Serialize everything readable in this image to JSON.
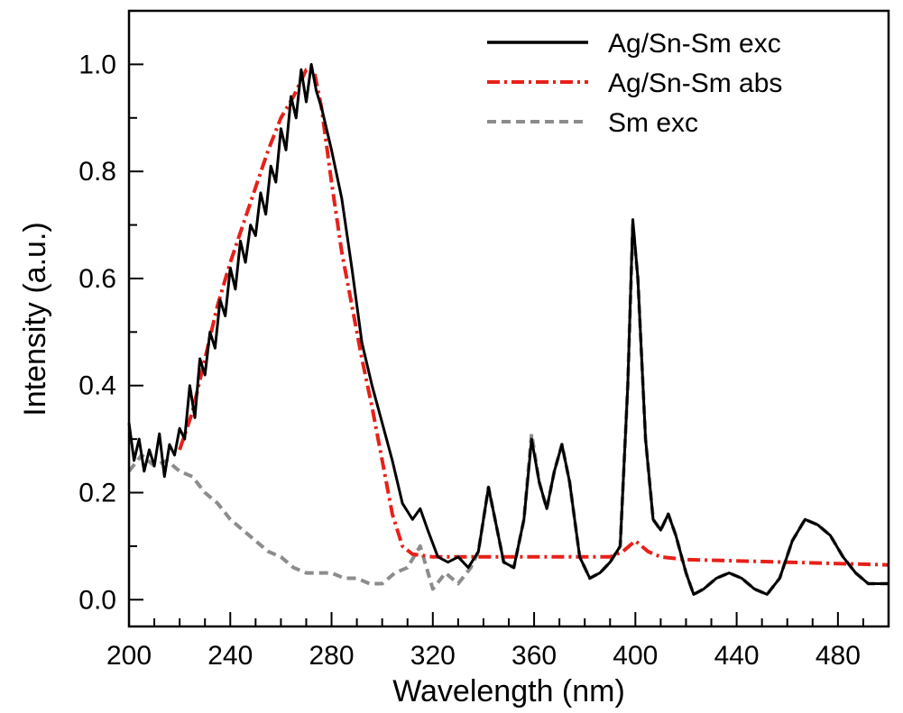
{
  "chart_data": {
    "type": "line",
    "title": "",
    "xlabel": "Wavelength (nm)",
    "ylabel": "Intensity (a.u.)",
    "xlim": [
      200,
      500
    ],
    "ylim": [
      -0.05,
      1.1
    ],
    "xticks": [
      200,
      240,
      280,
      320,
      360,
      400,
      440,
      480
    ],
    "yticks": [
      0.0,
      0.2,
      0.4,
      0.6,
      0.8,
      1.0
    ],
    "ytick_labels": [
      "0.0",
      "0.2",
      "0.4",
      "0.6",
      "0.8",
      "1.0"
    ],
    "grid": false,
    "legend_position": "top-right",
    "series": [
      {
        "name": "Ag/Sn-Sm exc",
        "color": "#000000",
        "style": "solid",
        "x": [
          200,
          202,
          204,
          206,
          208,
          210,
          212,
          214,
          216,
          218,
          220,
          222,
          224,
          226,
          228,
          230,
          232,
          234,
          236,
          238,
          240,
          242,
          244,
          246,
          248,
          250,
          252,
          254,
          256,
          258,
          260,
          262,
          264,
          266,
          268,
          270,
          272,
          274,
          276,
          280,
          284,
          288,
          292,
          296,
          300,
          304,
          308,
          312,
          315,
          318,
          322,
          326,
          330,
          334,
          338,
          342,
          345,
          348,
          352,
          356,
          359,
          362,
          365,
          368,
          371,
          374,
          378,
          382,
          386,
          390,
          394,
          397,
          399,
          401,
          404,
          407,
          410,
          413,
          416,
          420,
          423,
          427,
          432,
          437,
          442,
          447,
          452,
          457,
          462,
          467,
          472,
          477,
          482,
          487,
          492,
          497,
          500
        ],
        "y": [
          0.33,
          0.26,
          0.3,
          0.24,
          0.28,
          0.25,
          0.31,
          0.23,
          0.29,
          0.27,
          0.32,
          0.3,
          0.4,
          0.34,
          0.45,
          0.42,
          0.5,
          0.47,
          0.56,
          0.53,
          0.62,
          0.58,
          0.67,
          0.63,
          0.7,
          0.68,
          0.76,
          0.72,
          0.81,
          0.78,
          0.88,
          0.84,
          0.94,
          0.9,
          0.99,
          0.93,
          1.0,
          0.95,
          0.92,
          0.84,
          0.75,
          0.62,
          0.48,
          0.4,
          0.33,
          0.26,
          0.18,
          0.15,
          0.17,
          0.13,
          0.08,
          0.07,
          0.08,
          0.06,
          0.09,
          0.21,
          0.14,
          0.07,
          0.06,
          0.15,
          0.3,
          0.22,
          0.17,
          0.24,
          0.29,
          0.22,
          0.08,
          0.04,
          0.05,
          0.07,
          0.1,
          0.4,
          0.71,
          0.6,
          0.3,
          0.15,
          0.13,
          0.16,
          0.12,
          0.05,
          0.01,
          0.02,
          0.04,
          0.05,
          0.04,
          0.02,
          0.01,
          0.04,
          0.11,
          0.15,
          0.14,
          0.12,
          0.08,
          0.05,
          0.03,
          0.03,
          0.03
        ]
      },
      {
        "name": "Ag/Sn-Sm abs",
        "color": "#e8201a",
        "style": "dashdot",
        "x": [
          220,
          225,
          230,
          235,
          240,
          245,
          250,
          255,
          260,
          265,
          270,
          273,
          276,
          280,
          284,
          288,
          292,
          296,
          300,
          304,
          308,
          312,
          320,
          340,
          360,
          380,
          390,
          395,
          400,
          405,
          410,
          420,
          460,
          500
        ],
        "y": [
          0.28,
          0.35,
          0.45,
          0.55,
          0.63,
          0.7,
          0.77,
          0.84,
          0.9,
          0.94,
          0.99,
          0.99,
          0.92,
          0.78,
          0.65,
          0.55,
          0.45,
          0.36,
          0.26,
          0.16,
          0.1,
          0.085,
          0.08,
          0.08,
          0.08,
          0.08,
          0.08,
          0.09,
          0.11,
          0.09,
          0.08,
          0.075,
          0.07,
          0.065
        ]
      },
      {
        "name": "Sm exc",
        "color": "#8c8c8c",
        "style": "dashed",
        "x": [
          200,
          205,
          210,
          215,
          220,
          225,
          230,
          235,
          240,
          245,
          250,
          255,
          260,
          265,
          270,
          275,
          280,
          285,
          290,
          295,
          300,
          305,
          310,
          315,
          320,
          325,
          330,
          335,
          338,
          342,
          345,
          348,
          352,
          356,
          359,
          362,
          365,
          368,
          371,
          374,
          378,
          382,
          386,
          390,
          394,
          397,
          399,
          401,
          404,
          407,
          410,
          413,
          416,
          420,
          423,
          427,
          432,
          437,
          442,
          447,
          452,
          457,
          462,
          467,
          472,
          477,
          482,
          487,
          492,
          497,
          500
        ],
        "y": [
          0.24,
          0.27,
          0.25,
          0.26,
          0.24,
          0.23,
          0.2,
          0.18,
          0.15,
          0.13,
          0.11,
          0.09,
          0.08,
          0.06,
          0.05,
          0.05,
          0.05,
          0.04,
          0.04,
          0.03,
          0.03,
          0.05,
          0.06,
          0.1,
          0.02,
          0.05,
          0.03,
          0.06,
          0.09,
          0.21,
          0.14,
          0.07,
          0.06,
          0.15,
          0.31,
          0.22,
          0.17,
          0.24,
          0.29,
          0.22,
          0.08,
          0.04,
          0.05,
          0.07,
          0.1,
          0.4,
          0.7,
          0.6,
          0.3,
          0.15,
          0.13,
          0.16,
          0.12,
          0.05,
          0.01,
          0.02,
          0.04,
          0.05,
          0.04,
          0.02,
          0.01,
          0.04,
          0.11,
          0.15,
          0.14,
          0.12,
          0.08,
          0.05,
          0.03,
          0.03,
          0.03
        ]
      }
    ]
  }
}
